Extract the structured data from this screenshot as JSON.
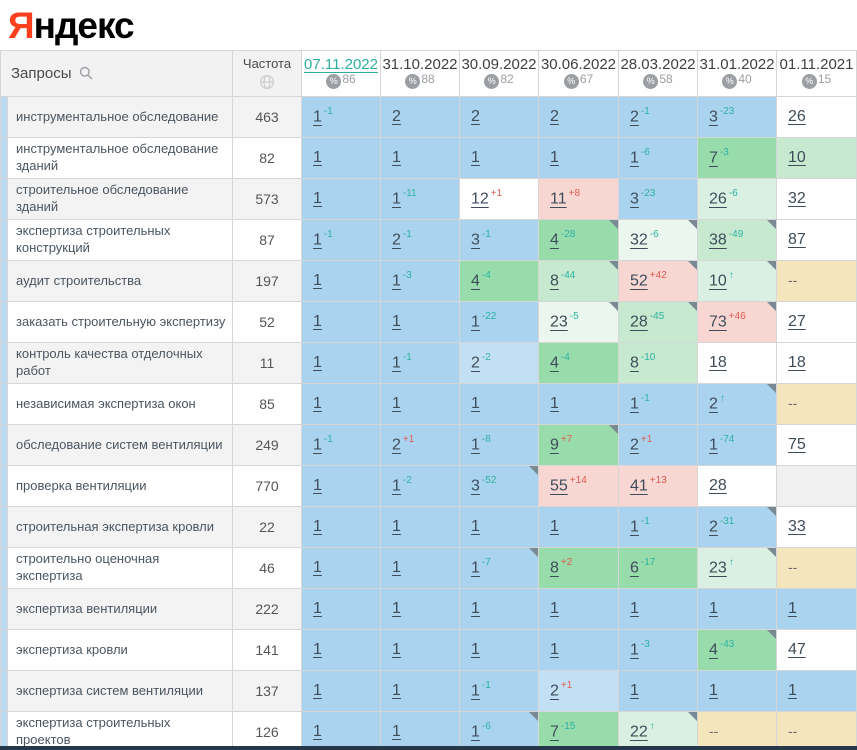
{
  "logo": {
    "part1": "Я",
    "part2": "ндекс"
  },
  "header": {
    "queries_label": "Запросы",
    "frequency_label": "Частота",
    "visibility_symbol": "%",
    "dates": [
      {
        "label": "07.11.2022",
        "visibility": "86",
        "selected": true
      },
      {
        "label": "31.10.2022",
        "visibility": "88",
        "selected": false
      },
      {
        "label": "30.09.2022",
        "visibility": "82",
        "selected": false
      },
      {
        "label": "30.06.2022",
        "visibility": "67",
        "selected": false
      },
      {
        "label": "28.03.2022",
        "visibility": "58",
        "selected": false
      },
      {
        "label": "31.01.2022",
        "visibility": "40",
        "selected": false
      },
      {
        "label": "01.11.2021",
        "visibility": "15",
        "selected": false
      }
    ]
  },
  "colors": {
    "blue": "#a9d3ee",
    "blueLight": "#c3dff4",
    "green": "#99dcab",
    "greenLight": "#c6e9d0",
    "greenPale": "#d9f0e2",
    "greenFaint": "#eaf6ee",
    "pink": "#f8d7d3",
    "beige": "#f5e5bd",
    "white": "#ffffff",
    "gray": "#f0f0f0",
    "teal": "#2eb2a2",
    "red": "#e05c52"
  },
  "rows": [
    {
      "query": "инструментальное обследование",
      "frequency": "463",
      "cells": [
        {
          "pos": "1",
          "delta": "-1",
          "bg": "b"
        },
        {
          "pos": "2",
          "delta": "",
          "bg": "b"
        },
        {
          "pos": "2",
          "delta": "",
          "bg": "b"
        },
        {
          "pos": "2",
          "delta": "",
          "bg": "b"
        },
        {
          "pos": "2",
          "delta": "-1",
          "bg": "b"
        },
        {
          "pos": "3",
          "delta": "-23",
          "bg": "b"
        },
        {
          "pos": "26",
          "delta": "",
          "bg": "w"
        }
      ]
    },
    {
      "query": "инструментальное обследование зданий",
      "frequency": "82",
      "cells": [
        {
          "pos": "1",
          "delta": "",
          "bg": "b"
        },
        {
          "pos": "1",
          "delta": "",
          "bg": "b"
        },
        {
          "pos": "1",
          "delta": "",
          "bg": "b"
        },
        {
          "pos": "1",
          "delta": "",
          "bg": "b"
        },
        {
          "pos": "1",
          "delta": "-6",
          "bg": "b"
        },
        {
          "pos": "7",
          "delta": "-3",
          "bg": "g"
        },
        {
          "pos": "10",
          "delta": "",
          "bg": "lg"
        }
      ]
    },
    {
      "query": "строительное обследование зданий",
      "frequency": "573",
      "cells": [
        {
          "pos": "1",
          "delta": "",
          "bg": "b"
        },
        {
          "pos": "1",
          "delta": "-11",
          "bg": "b"
        },
        {
          "pos": "12",
          "delta": "+1",
          "bg": "w"
        },
        {
          "pos": "11",
          "delta": "+8",
          "bg": "p"
        },
        {
          "pos": "3",
          "delta": "-23",
          "bg": "b"
        },
        {
          "pos": "26",
          "delta": "-6",
          "bg": "pg"
        },
        {
          "pos": "32",
          "delta": "",
          "bg": "w"
        }
      ]
    },
    {
      "query": "экспертиза строительных конструкций",
      "frequency": "87",
      "cells": [
        {
          "pos": "1",
          "delta": "-1",
          "bg": "b"
        },
        {
          "pos": "2",
          "delta": "-1",
          "bg": "b"
        },
        {
          "pos": "3",
          "delta": "-1",
          "bg": "b"
        },
        {
          "pos": "4",
          "delta": "-28",
          "bg": "g",
          "corner": true
        },
        {
          "pos": "32",
          "delta": "-6",
          "bg": "pgl",
          "corner": true
        },
        {
          "pos": "38",
          "delta": "-49",
          "bg": "lg",
          "corner": true
        },
        {
          "pos": "87",
          "delta": "",
          "bg": "w"
        }
      ]
    },
    {
      "query": "аудит строительства",
      "frequency": "197",
      "cells": [
        {
          "pos": "1",
          "delta": "",
          "bg": "b"
        },
        {
          "pos": "1",
          "delta": "-3",
          "bg": "b"
        },
        {
          "pos": "4",
          "delta": "-4",
          "bg": "g"
        },
        {
          "pos": "8",
          "delta": "-44",
          "bg": "lg",
          "corner": true
        },
        {
          "pos": "52",
          "delta": "+42",
          "bg": "p",
          "corner": true
        },
        {
          "pos": "10",
          "delta": "↑",
          "bg": "pg",
          "corner": true
        },
        {
          "pos": "--",
          "delta": "",
          "bg": "be"
        }
      ]
    },
    {
      "query": "заказать строительную экспертизу",
      "frequency": "52",
      "cells": [
        {
          "pos": "1",
          "delta": "",
          "bg": "b"
        },
        {
          "pos": "1",
          "delta": "",
          "bg": "b"
        },
        {
          "pos": "1",
          "delta": "-22",
          "bg": "b"
        },
        {
          "pos": "23",
          "delta": "-5",
          "bg": "pgl",
          "corner": true
        },
        {
          "pos": "28",
          "delta": "-45",
          "bg": "lg",
          "corner": true
        },
        {
          "pos": "73",
          "delta": "+46",
          "bg": "p",
          "corner": true
        },
        {
          "pos": "27",
          "delta": "",
          "bg": "w"
        }
      ]
    },
    {
      "query": "контроль качества отделочных работ",
      "frequency": "11",
      "cells": [
        {
          "pos": "1",
          "delta": "",
          "bg": "b"
        },
        {
          "pos": "1",
          "delta": "-1",
          "bg": "b"
        },
        {
          "pos": "2",
          "delta": "-2",
          "bg": "lb"
        },
        {
          "pos": "4",
          "delta": "-4",
          "bg": "g"
        },
        {
          "pos": "8",
          "delta": "-10",
          "bg": "lg"
        },
        {
          "pos": "18",
          "delta": "",
          "bg": "w"
        },
        {
          "pos": "18",
          "delta": "",
          "bg": "w"
        }
      ]
    },
    {
      "query": "независимая экспертиза окон",
      "frequency": "85",
      "cells": [
        {
          "pos": "1",
          "delta": "",
          "bg": "b"
        },
        {
          "pos": "1",
          "delta": "",
          "bg": "b"
        },
        {
          "pos": "1",
          "delta": "",
          "bg": "b"
        },
        {
          "pos": "1",
          "delta": "",
          "bg": "b"
        },
        {
          "pos": "1",
          "delta": "-1",
          "bg": "b"
        },
        {
          "pos": "2",
          "delta": "↑",
          "bg": "b",
          "corner": true
        },
        {
          "pos": "--",
          "delta": "",
          "bg": "be"
        }
      ]
    },
    {
      "query": "обследование систем вентиляции",
      "frequency": "249",
      "cells": [
        {
          "pos": "1",
          "delta": "-1",
          "bg": "b"
        },
        {
          "pos": "2",
          "delta": "+1",
          "bg": "b"
        },
        {
          "pos": "1",
          "delta": "-8",
          "bg": "b"
        },
        {
          "pos": "9",
          "delta": "+7",
          "bg": "g",
          "corner": true
        },
        {
          "pos": "2",
          "delta": "+1",
          "bg": "b"
        },
        {
          "pos": "1",
          "delta": "-74",
          "bg": "b"
        },
        {
          "pos": "75",
          "delta": "",
          "bg": "w"
        }
      ]
    },
    {
      "query": "проверка вентиляции",
      "frequency": "770",
      "cells": [
        {
          "pos": "1",
          "delta": "",
          "bg": "b"
        },
        {
          "pos": "1",
          "delta": "-2",
          "bg": "b"
        },
        {
          "pos": "3",
          "delta": "-52",
          "bg": "b",
          "corner": true
        },
        {
          "pos": "55",
          "delta": "+14",
          "bg": "p"
        },
        {
          "pos": "41",
          "delta": "+13",
          "bg": "p"
        },
        {
          "pos": "28",
          "delta": "",
          "bg": "w"
        },
        {
          "pos": "",
          "delta": "",
          "bg": "gr"
        }
      ]
    },
    {
      "query": "строительная экспертиза кровли",
      "frequency": "22",
      "cells": [
        {
          "pos": "1",
          "delta": "",
          "bg": "b"
        },
        {
          "pos": "1",
          "delta": "",
          "bg": "b"
        },
        {
          "pos": "1",
          "delta": "",
          "bg": "b"
        },
        {
          "pos": "1",
          "delta": "",
          "bg": "b"
        },
        {
          "pos": "1",
          "delta": "-1",
          "bg": "b"
        },
        {
          "pos": "2",
          "delta": "-31",
          "bg": "b",
          "corner": true
        },
        {
          "pos": "33",
          "delta": "",
          "bg": "w"
        }
      ]
    },
    {
      "query": "строительно оценочная экспертиза",
      "frequency": "46",
      "cells": [
        {
          "pos": "1",
          "delta": "",
          "bg": "b"
        },
        {
          "pos": "1",
          "delta": "",
          "bg": "b"
        },
        {
          "pos": "1",
          "delta": "-7",
          "bg": "b",
          "corner": true
        },
        {
          "pos": "8",
          "delta": "+2",
          "bg": "g"
        },
        {
          "pos": "6",
          "delta": "-17",
          "bg": "g"
        },
        {
          "pos": "23",
          "delta": "↑",
          "bg": "pg",
          "corner": true
        },
        {
          "pos": "--",
          "delta": "",
          "bg": "be"
        }
      ]
    },
    {
      "query": "экспертиза вентиляции",
      "frequency": "222",
      "cells": [
        {
          "pos": "1",
          "delta": "",
          "bg": "b"
        },
        {
          "pos": "1",
          "delta": "",
          "bg": "b"
        },
        {
          "pos": "1",
          "delta": "",
          "bg": "b"
        },
        {
          "pos": "1",
          "delta": "",
          "bg": "b"
        },
        {
          "pos": "1",
          "delta": "",
          "bg": "b"
        },
        {
          "pos": "1",
          "delta": "",
          "bg": "b"
        },
        {
          "pos": "1",
          "delta": "",
          "bg": "b"
        }
      ]
    },
    {
      "query": "экспертиза кровли",
      "frequency": "141",
      "cells": [
        {
          "pos": "1",
          "delta": "",
          "bg": "b"
        },
        {
          "pos": "1",
          "delta": "",
          "bg": "b"
        },
        {
          "pos": "1",
          "delta": "",
          "bg": "b"
        },
        {
          "pos": "1",
          "delta": "",
          "bg": "b"
        },
        {
          "pos": "1",
          "delta": "-3",
          "bg": "b"
        },
        {
          "pos": "4",
          "delta": "-43",
          "bg": "g",
          "corner": true
        },
        {
          "pos": "47",
          "delta": "",
          "bg": "w"
        }
      ]
    },
    {
      "query": "экспертиза систем вентиляции",
      "frequency": "137",
      "cells": [
        {
          "pos": "1",
          "delta": "",
          "bg": "b"
        },
        {
          "pos": "1",
          "delta": "",
          "bg": "b"
        },
        {
          "pos": "1",
          "delta": "-1",
          "bg": "b"
        },
        {
          "pos": "2",
          "delta": "+1",
          "bg": "lb"
        },
        {
          "pos": "1",
          "delta": "",
          "bg": "b"
        },
        {
          "pos": "1",
          "delta": "",
          "bg": "b"
        },
        {
          "pos": "1",
          "delta": "",
          "bg": "b"
        }
      ]
    },
    {
      "query": "экспертиза строительных проектов",
      "frequency": "126",
      "cells": [
        {
          "pos": "1",
          "delta": "",
          "bg": "b"
        },
        {
          "pos": "1",
          "delta": "",
          "bg": "b"
        },
        {
          "pos": "1",
          "delta": "-6",
          "bg": "b",
          "corner": true
        },
        {
          "pos": "7",
          "delta": "-15",
          "bg": "g"
        },
        {
          "pos": "22",
          "delta": "↑",
          "bg": "pg",
          "corner": true
        },
        {
          "pos": "--",
          "delta": "",
          "bg": "be"
        },
        {
          "pos": "--",
          "delta": "",
          "bg": "be"
        }
      ]
    }
  ]
}
